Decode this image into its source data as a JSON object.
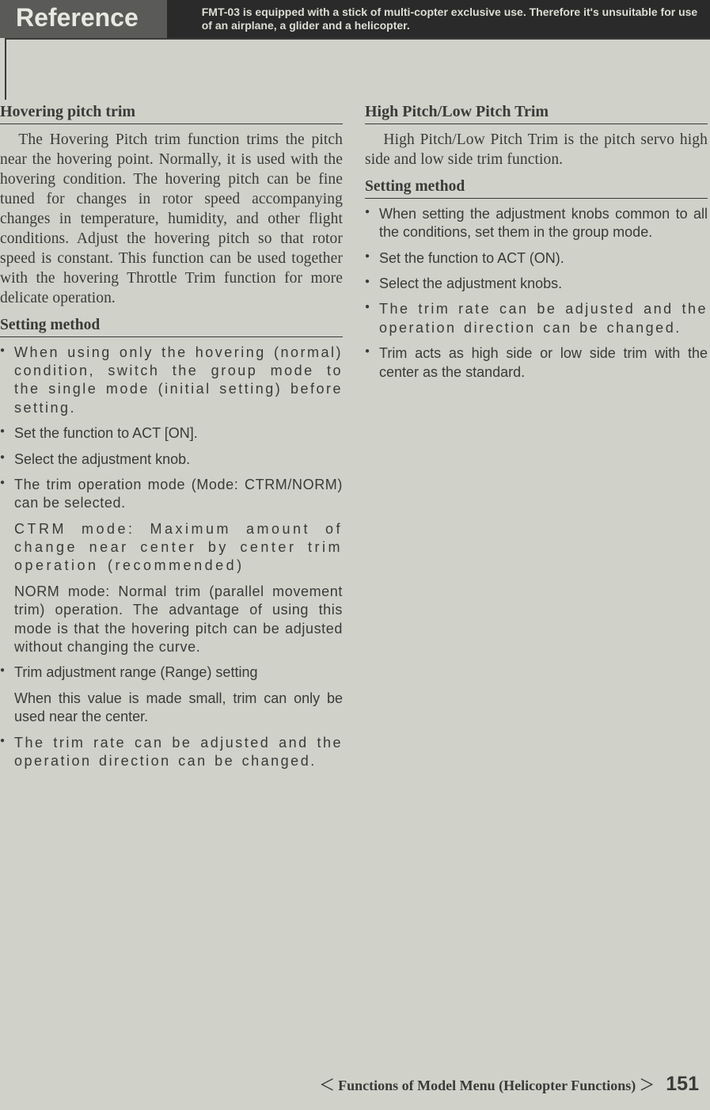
{
  "header": {
    "reference": "Reference",
    "note": "FMT-03 is equipped with a stick of multi-copter exclusive use. Therefore it's unsuitable for use of an airplane, a glider and a helicopter."
  },
  "left": {
    "title": "Hovering pitch trim",
    "body": "The Hovering Pitch trim function trims the pitch near the hovering point. Normally, it is used with the hovering condition. The hovering pitch can be fine tuned for changes in rotor speed accompanying changes in temperature, humidity, and other flight conditions. Adjust the hovering pitch so that rotor speed is constant. This function can be used together with the hovering Throttle Trim function for more delicate operation.",
    "setting_title": "Setting method",
    "bullets": {
      "b1": "When using only the hovering (normal) condition, switch the group mode to the single mode (initial setting) before setting.",
      "b2": "Set the function to ACT [ON].",
      "b3": "Select the adjustment knob.",
      "b4": "The trim operation mode (Mode: CTRM/NORM) can be selected.",
      "b4_sub1": "CTRM mode: Maximum amount of change near center by center trim operation (recommended)",
      "b4_sub2": "NORM mode: Normal trim (parallel movement trim) operation. The advantage of using this mode is that the hovering pitch can be adjusted without changing the curve.",
      "b5": "Trim adjustment range (Range) setting",
      "b5_sub1": "When this value is made small, trim can only be used near the center.",
      "b6": "The trim rate can be adjusted and the operation direction can be changed."
    }
  },
  "right": {
    "title": "High Pitch/Low Pitch Trim",
    "body": "High Pitch/Low Pitch Trim is the pitch servo high side and low side trim function.",
    "setting_title": "Setting method",
    "bullets": {
      "b1": "When setting the adjustment knobs common to all the conditions, set them in the group mode.",
      "b2": "Set the function to ACT (ON).",
      "b3": "Select the adjustment knobs.",
      "b4": "The trim rate can be adjusted and the operation direction can be changed.",
      "b5": "Trim acts as high side or low side trim with the center as the standard."
    }
  },
  "footer": {
    "label": "Functions of Model Menu (Helicopter Functions)",
    "page": "151"
  }
}
